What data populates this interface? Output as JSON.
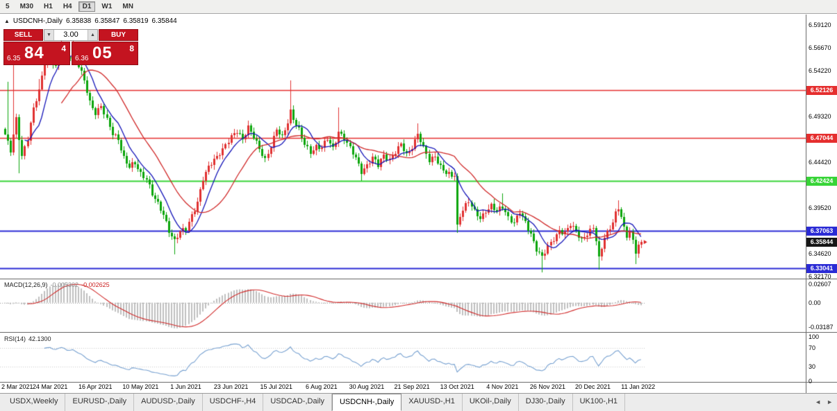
{
  "toolbar": {
    "timeframes": [
      {
        "label": "5",
        "active": false
      },
      {
        "label": "M30",
        "active": false
      },
      {
        "label": "H1",
        "active": false
      },
      {
        "label": "H4",
        "active": false
      },
      {
        "label": "D1",
        "active": true
      },
      {
        "label": "W1",
        "active": false
      },
      {
        "label": "MN",
        "active": false
      }
    ]
  },
  "ohlc_header": {
    "toggle_icon": "▲",
    "symbol": "USDCNH-,Daily",
    "open": "6.35838",
    "high": "6.35847",
    "low": "6.35819",
    "close": "6.35844"
  },
  "trade_panel": {
    "sell_label": "SELL",
    "buy_label": "BUY",
    "volume": "3.00",
    "spinner_down": "▼",
    "spinner_up": "▲",
    "bid": {
      "small": "6.35",
      "big": "84",
      "sup": "4"
    },
    "ask": {
      "small": "6.36",
      "big": "05",
      "sup": "8"
    }
  },
  "chart_data": {
    "type": "candlestick",
    "symbol": "USDCNH-",
    "timeframe": "Daily",
    "last_close": 6.35844,
    "num_candles": 226,
    "candle_colors": {
      "up": "#e03030",
      "down": "#0ba50b"
    },
    "price_axis": {
      "p_top": 6.6024,
      "p_bottom": 6.3193,
      "labels": [
        {
          "text": "6.59120",
          "price": 6.5912
        },
        {
          "text": "6.56670",
          "price": 6.5667
        },
        {
          "text": "6.54220",
          "price": 6.5422
        },
        {
          "text": "6.49320",
          "price": 6.4932
        },
        {
          "text": "6.44420",
          "price": 6.4442
        },
        {
          "text": "6.39520",
          "price": 6.3952
        },
        {
          "text": "6.34620",
          "price": 6.3462
        },
        {
          "text": "6.32170",
          "price": 6.3217
        }
      ]
    },
    "h_lines": [
      {
        "text": "6.52126",
        "price": 6.52126,
        "color": "#e52e2e",
        "width": 1.4
      },
      {
        "text": "6.47044",
        "price": 6.47044,
        "color": "#e52e2e",
        "width": 1.4
      },
      {
        "text": "6.42424",
        "price": 6.42424,
        "color": "#37d437",
        "width": 2
      },
      {
        "text": "6.37063",
        "price": 6.37063,
        "color": "#2b2bd5",
        "width": 2
      },
      {
        "text": "6.33041",
        "price": 6.33041,
        "color": "#2b2bd5",
        "width": 2
      }
    ],
    "current_price": {
      "text": "6.35844",
      "price": 6.35844,
      "tag_color": "#161616",
      "marker_color": "#dd2222"
    },
    "moving_averages": [
      {
        "type": "sma",
        "period": 8,
        "color": "#1414b8"
      },
      {
        "type": "sma",
        "period": 21,
        "color": "#d02828"
      }
    ],
    "close_waypoints": [
      [
        0,
        6.474
      ],
      [
        2,
        6.455
      ],
      [
        4,
        6.49
      ],
      [
        6,
        6.452
      ],
      [
        8,
        6.47
      ],
      [
        10,
        6.5
      ],
      [
        12,
        6.52
      ],
      [
        14,
        6.552
      ],
      [
        16,
        6.558
      ],
      [
        18,
        6.545
      ],
      [
        20,
        6.57
      ],
      [
        22,
        6.556
      ],
      [
        24,
        6.562
      ],
      [
        26,
        6.548
      ],
      [
        28,
        6.53
      ],
      [
        30,
        6.508
      ],
      [
        32,
        6.498
      ],
      [
        34,
        6.505
      ],
      [
        36,
        6.488
      ],
      [
        38,
        6.474
      ],
      [
        40,
        6.47
      ],
      [
        42,
        6.45
      ],
      [
        44,
        6.438
      ],
      [
        46,
        6.442
      ],
      [
        48,
        6.432
      ],
      [
        50,
        6.428
      ],
      [
        52,
        6.41
      ],
      [
        54,
        6.398
      ],
      [
        56,
        6.388
      ],
      [
        58,
        6.372
      ],
      [
        60,
        6.36
      ],
      [
        62,
        6.368
      ],
      [
        64,
        6.372
      ],
      [
        66,
        6.388
      ],
      [
        68,
        6.402
      ],
      [
        70,
        6.425
      ],
      [
        72,
        6.438
      ],
      [
        74,
        6.448
      ],
      [
        76,
        6.455
      ],
      [
        78,
        6.462
      ],
      [
        80,
        6.47
      ],
      [
        82,
        6.478
      ],
      [
        84,
        6.47
      ],
      [
        86,
        6.482
      ],
      [
        88,
        6.47
      ],
      [
        90,
        6.458
      ],
      [
        92,
        6.448
      ],
      [
        94,
        6.462
      ],
      [
        96,
        6.478
      ],
      [
        98,
        6.47
      ],
      [
        100,
        6.488
      ],
      [
        101,
        6.5
      ],
      [
        102,
        6.492
      ],
      [
        104,
        6.478
      ],
      [
        106,
        6.462
      ],
      [
        108,
        6.455
      ],
      [
        110,
        6.462
      ],
      [
        112,
        6.46
      ],
      [
        114,
        6.468
      ],
      [
        116,
        6.458
      ],
      [
        118,
        6.478
      ],
      [
        120,
        6.47
      ],
      [
        122,
        6.458
      ],
      [
        124,
        6.448
      ],
      [
        126,
        6.435
      ],
      [
        128,
        6.442
      ],
      [
        130,
        6.448
      ],
      [
        132,
        6.44
      ],
      [
        134,
        6.452
      ],
      [
        136,
        6.448
      ],
      [
        138,
        6.455
      ],
      [
        140,
        6.462
      ],
      [
        142,
        6.452
      ],
      [
        144,
        6.462
      ],
      [
        146,
        6.475
      ],
      [
        148,
        6.458
      ],
      [
        150,
        6.445
      ],
      [
        152,
        6.452
      ],
      [
        154,
        6.44
      ],
      [
        156,
        6.432
      ],
      [
        158,
        6.428
      ],
      [
        159,
        6.43
      ],
      [
        160,
        6.376
      ],
      [
        161,
        6.388
      ],
      [
        162,
        6.395
      ],
      [
        164,
        6.402
      ],
      [
        166,
        6.39
      ],
      [
        168,
        6.384
      ],
      [
        170,
        6.393
      ],
      [
        172,
        6.398
      ],
      [
        174,
        6.39
      ],
      [
        176,
        6.396
      ],
      [
        178,
        6.386
      ],
      [
        180,
        6.38
      ],
      [
        182,
        6.39
      ],
      [
        184,
        6.378
      ],
      [
        186,
        6.368
      ],
      [
        188,
        6.352
      ],
      [
        190,
        6.342
      ],
      [
        192,
        6.352
      ],
      [
        194,
        6.362
      ],
      [
        196,
        6.372
      ],
      [
        198,
        6.368
      ],
      [
        200,
        6.376
      ],
      [
        202,
        6.37
      ],
      [
        204,
        6.362
      ],
      [
        206,
        6.368
      ],
      [
        208,
        6.372
      ],
      [
        209,
        6.36
      ],
      [
        210,
        6.34
      ],
      [
        211,
        6.352
      ],
      [
        212,
        6.366
      ],
      [
        214,
        6.374
      ],
      [
        216,
        6.388
      ],
      [
        217,
        6.393
      ],
      [
        218,
        6.385
      ],
      [
        219,
        6.372
      ],
      [
        220,
        6.365
      ],
      [
        221,
        6.372
      ],
      [
        222,
        6.36
      ],
      [
        223,
        6.348
      ],
      [
        224,
        6.356
      ],
      [
        225,
        6.35844
      ]
    ],
    "spikes": [
      {
        "i": 1,
        "h": 6.53
      },
      {
        "i": 3,
        "h": 6.548
      },
      {
        "i": 5,
        "l": 6.432
      },
      {
        "i": 12,
        "h": 6.533
      },
      {
        "i": 20,
        "h": 6.585
      },
      {
        "i": 24,
        "h": 6.578
      },
      {
        "i": 60,
        "l": 6.345
      },
      {
        "i": 101,
        "h": 6.532
      },
      {
        "i": 118,
        "h": 6.503
      },
      {
        "i": 126,
        "l": 6.424
      },
      {
        "i": 146,
        "h": 6.486
      },
      {
        "i": 160,
        "l": 6.368
      },
      {
        "i": 176,
        "h": 6.411
      },
      {
        "i": 190,
        "l": 6.326
      },
      {
        "i": 210,
        "l": 6.329
      },
      {
        "i": 217,
        "h": 6.403
      },
      {
        "i": 223,
        "l": 6.335
      }
    ],
    "noise": {
      "a1": 0.0022,
      "a2": 0.0016,
      "wick": 0.0035
    },
    "macd": {
      "title": "MACD(12,26,9)",
      "value1": "-0.005302",
      "value2": "-0.002625",
      "fast": 12,
      "slow": 26,
      "signal_period": 9,
      "labels": {
        "top": "0.02607",
        "zero": "0.00",
        "bottom": "-0.03187"
      },
      "hist_color": "#bfbfbf",
      "signal_color": "#d02828"
    },
    "rsi": {
      "title": "RSI(14)",
      "value": "42.1300",
      "period": 14,
      "labels": [
        "100",
        "70",
        "30",
        "0"
      ],
      "levels": [
        70,
        30
      ],
      "line_color": "#76a0d0"
    },
    "x_labels": [
      {
        "index": 0,
        "text": "2 Mar 2021"
      },
      {
        "index": 16,
        "text": "24 Mar 2021"
      },
      {
        "index": 32,
        "text": "16 Apr 2021"
      },
      {
        "index": 48,
        "text": "10 May 2021"
      },
      {
        "index": 64,
        "text": "1 Jun 2021"
      },
      {
        "index": 80,
        "text": "23 Jun 2021"
      },
      {
        "index": 96,
        "text": "15 Jul 2021"
      },
      {
        "index": 112,
        "text": "6 Aug 2021"
      },
      {
        "index": 128,
        "text": "30 Aug 2021"
      },
      {
        "index": 144,
        "text": "21 Sep 2021"
      },
      {
        "index": 160,
        "text": "13 Oct 2021"
      },
      {
        "index": 176,
        "text": "4 Nov 2021"
      },
      {
        "index": 192,
        "text": "26 Nov 2021"
      },
      {
        "index": 208,
        "text": "20 Dec 2021"
      },
      {
        "index": 224,
        "text": "11 Jan 2022"
      }
    ]
  },
  "bottom_tabs": {
    "items": [
      "USDX,Weekly",
      "EURUSD-,Daily",
      "AUDUSD-,Daily",
      "USDCHF-,H4",
      "USDCAD-,Daily",
      "USDCNH-,Daily",
      "XAUUSD-,H1",
      "UKOil-,Daily",
      "DJ30-,Daily",
      "UK100-,H1"
    ],
    "active_index": 5,
    "scroll_left": "◄",
    "scroll_right": "►"
  }
}
